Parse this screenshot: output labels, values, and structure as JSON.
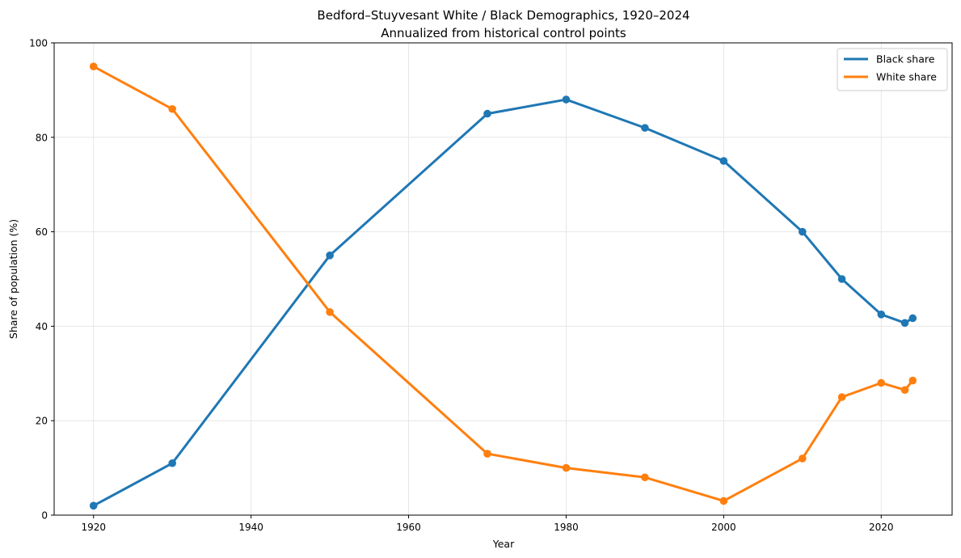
{
  "chart_data": {
    "type": "line",
    "title": "Bedford–Stuyvesant White / Black Demographics, 1920–2024",
    "subtitle": "Annualized from historical control points",
    "xlabel": "Year",
    "ylabel": "Share of population (%)",
    "xlim": [
      1915,
      2029
    ],
    "ylim": [
      0,
      100
    ],
    "xticks": [
      1920,
      1940,
      1960,
      1980,
      2000,
      2020
    ],
    "yticks": [
      0,
      20,
      40,
      60,
      80,
      100
    ],
    "grid": true,
    "legend_position": "top-right",
    "series": [
      {
        "name": "Black share",
        "color": "#1f77b4",
        "x": [
          1920,
          1930,
          1950,
          1970,
          1980,
          1990,
          2000,
          2010,
          2015,
          2020,
          2023,
          2024
        ],
        "values": [
          2,
          11,
          55,
          85,
          88,
          82,
          75,
          60,
          50,
          42.5,
          40.7,
          41.7
        ]
      },
      {
        "name": "White share",
        "color": "#ff7f0e",
        "x": [
          1920,
          1930,
          1950,
          1970,
          1980,
          1990,
          2000,
          2010,
          2015,
          2020,
          2023,
          2024
        ],
        "values": [
          95,
          86,
          43,
          13,
          10,
          8,
          3,
          12,
          25,
          28,
          26.5,
          28.5
        ]
      }
    ]
  }
}
